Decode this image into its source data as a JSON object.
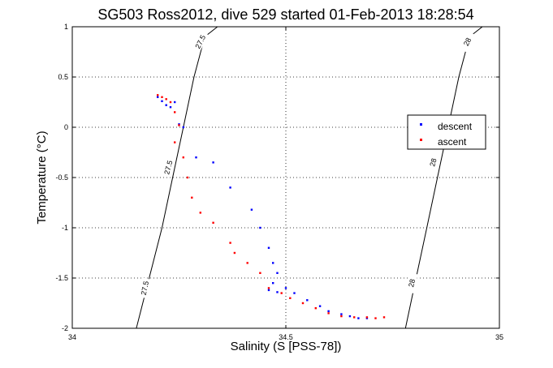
{
  "chart_data": {
    "type": "scatter",
    "title": "SG503 Ross2012, dive 529 started 01-Feb-2013 18:28:54",
    "xlabel": "Salinity (S [PSS-78])",
    "ylabel": "Temperature (°C)",
    "xlim": [
      34,
      35
    ],
    "ylim": [
      -2,
      1
    ],
    "x_ticks": [
      34,
      34.5,
      35
    ],
    "x_tick_labels": [
      "34",
      "34.5",
      "35"
    ],
    "y_ticks": [
      -2,
      -1.5,
      -1,
      -0.5,
      0,
      0.5,
      1
    ],
    "y_tick_labels": [
      "-2",
      "-1.5",
      "-1",
      "-0.5",
      "0",
      "0.5",
      "1"
    ],
    "grid": true,
    "legend": {
      "placement": "right",
      "entries": [
        "descent",
        "ascent"
      ]
    },
    "colors": {
      "descent": "#0000ff",
      "ascent": "#ff0000",
      "contour": "#000000"
    },
    "contours": [
      {
        "label": "27.5",
        "points": [
          [
            34.15,
            -2.0
          ],
          [
            34.18,
            -1.5
          ],
          [
            34.21,
            -1.0
          ],
          [
            34.235,
            -0.5
          ],
          [
            34.26,
            0.0
          ],
          [
            34.285,
            0.5
          ],
          [
            34.31,
            0.9
          ],
          [
            34.34,
            1.0
          ]
        ]
      },
      {
        "label": "28",
        "points": [
          [
            34.78,
            -2.0
          ],
          [
            34.805,
            -1.5
          ],
          [
            34.83,
            -1.0
          ],
          [
            34.855,
            -0.5
          ],
          [
            34.88,
            0.0
          ],
          [
            34.905,
            0.5
          ],
          [
            34.93,
            0.9
          ],
          [
            34.96,
            1.0
          ]
        ]
      }
    ],
    "contour_labels": [
      {
        "text": "27.5",
        "x": 34.3,
        "y": 0.85,
        "angle": -63
      },
      {
        "text": "27.5",
        "x": 34.225,
        "y": -0.4,
        "angle": -75
      },
      {
        "text": "27.5",
        "x": 34.17,
        "y": -1.6,
        "angle": -78
      },
      {
        "text": "28",
        "x": 34.925,
        "y": 0.85,
        "angle": -63
      },
      {
        "text": "28",
        "x": 34.845,
        "y": -0.35,
        "angle": -75
      },
      {
        "text": "28",
        "x": 34.795,
        "y": -1.55,
        "angle": -78
      }
    ],
    "series": [
      {
        "name": "descent",
        "points": [
          [
            34.2,
            0.3
          ],
          [
            34.21,
            0.26
          ],
          [
            34.22,
            0.22
          ],
          [
            34.23,
            0.2
          ],
          [
            34.24,
            0.25
          ],
          [
            34.25,
            0.03
          ],
          [
            34.26,
            0.0
          ],
          [
            34.29,
            -0.3
          ],
          [
            34.33,
            -0.35
          ],
          [
            34.37,
            -0.6
          ],
          [
            34.42,
            -0.82
          ],
          [
            34.44,
            -1.0
          ],
          [
            34.46,
            -1.2
          ],
          [
            34.47,
            -1.35
          ],
          [
            34.48,
            -1.45
          ],
          [
            34.47,
            -1.55
          ],
          [
            34.46,
            -1.62
          ],
          [
            34.48,
            -1.64
          ],
          [
            34.5,
            -1.6
          ],
          [
            34.52,
            -1.65
          ],
          [
            34.55,
            -1.72
          ],
          [
            34.58,
            -1.78
          ],
          [
            34.6,
            -1.83
          ],
          [
            34.63,
            -1.86
          ],
          [
            34.65,
            -1.88
          ],
          [
            34.67,
            -1.9
          ],
          [
            34.69,
            -1.9
          ]
        ]
      },
      {
        "name": "ascent",
        "points": [
          [
            34.2,
            0.32
          ],
          [
            34.21,
            0.3
          ],
          [
            34.22,
            0.28
          ],
          [
            34.23,
            0.25
          ],
          [
            34.24,
            0.15
          ],
          [
            34.25,
            0.02
          ],
          [
            34.24,
            -0.15
          ],
          [
            34.26,
            -0.3
          ],
          [
            34.27,
            -0.5
          ],
          [
            34.28,
            -0.7
          ],
          [
            34.3,
            -0.85
          ],
          [
            34.33,
            -0.95
          ],
          [
            34.37,
            -1.15
          ],
          [
            34.38,
            -1.25
          ],
          [
            34.41,
            -1.35
          ],
          [
            34.44,
            -1.45
          ],
          [
            34.46,
            -1.6
          ],
          [
            34.49,
            -1.65
          ],
          [
            34.51,
            -1.7
          ],
          [
            34.54,
            -1.75
          ],
          [
            34.57,
            -1.8
          ],
          [
            34.6,
            -1.85
          ],
          [
            34.63,
            -1.88
          ],
          [
            34.66,
            -1.89
          ],
          [
            34.69,
            -1.89
          ],
          [
            34.71,
            -1.9
          ],
          [
            34.73,
            -1.89
          ]
        ]
      }
    ]
  }
}
